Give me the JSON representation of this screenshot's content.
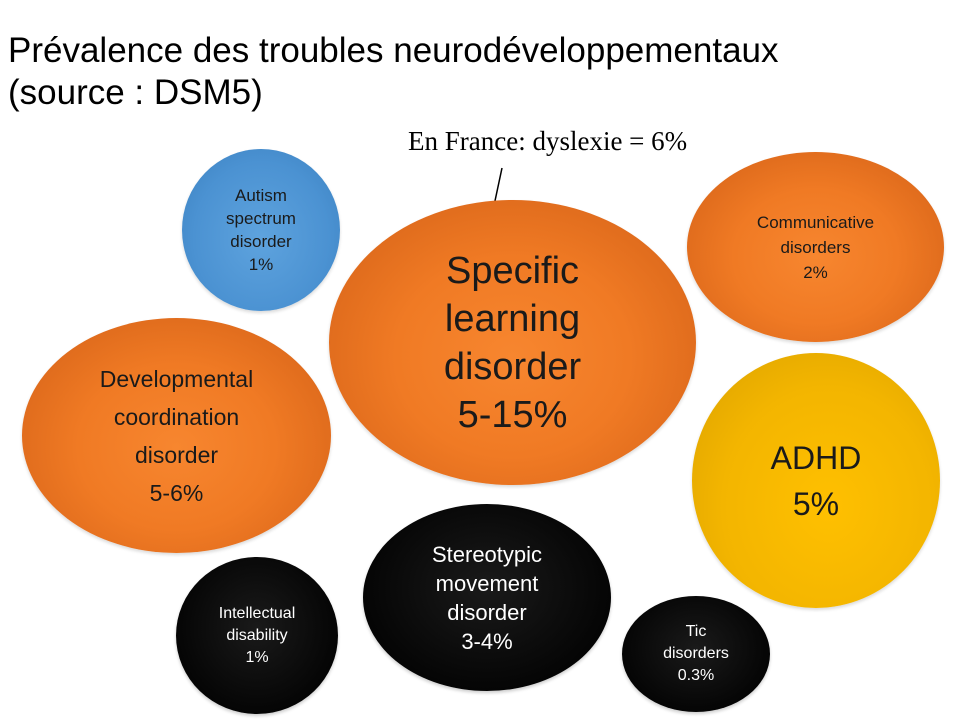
{
  "title": {
    "line1": "Prévalence des troubles neurodéveloppementaux",
    "line2": "(source : DSM5)"
  },
  "note": "En France: dyslexie = 6%",
  "colors": {
    "orange": "#f07a24",
    "blue": "#4b92d2",
    "gold": "#ffc000",
    "black": "#000000"
  },
  "bubbles": {
    "asd": {
      "lines": [
        "Autism",
        "spectrum",
        "disorder",
        "1%"
      ]
    },
    "sld": {
      "lines": [
        "Specific",
        "learning",
        "disorder",
        "5-15%"
      ]
    },
    "comm": {
      "lines": [
        "Communicative",
        "disorders",
        "2%"
      ]
    },
    "dcd": {
      "lines": [
        "Developmental",
        "coordination",
        "disorder",
        "5-6%"
      ]
    },
    "adhd": {
      "lines": [
        "ADHD",
        "5%"
      ]
    },
    "smd": {
      "lines": [
        "Stereotypic",
        "movement",
        "disorder",
        "3-4%"
      ]
    },
    "id": {
      "lines": [
        "Intellectual",
        "disability",
        "1%"
      ]
    },
    "tic": {
      "lines": [
        "Tic",
        "disorders",
        "0.3%"
      ]
    }
  }
}
